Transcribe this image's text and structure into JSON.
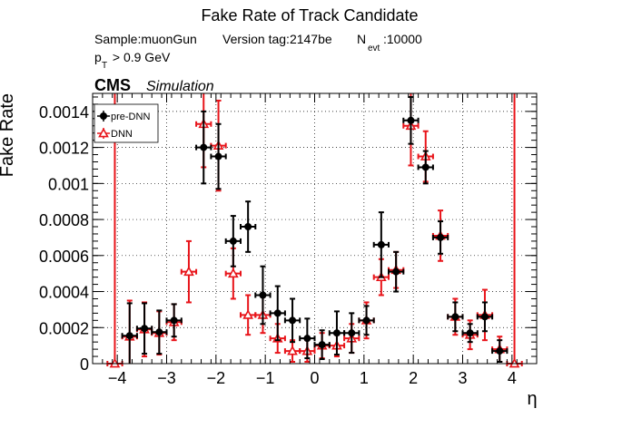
{
  "chart_data": {
    "type": "scatter",
    "title": "Fake Rate of Track Candidate",
    "info": {
      "sample": "Sample:muonGun",
      "version": "Version tag:2147be",
      "nevt_prefix": "N",
      "nevt_sub": "evt",
      "nevt_value": ":10000",
      "pt_base": "p",
      "pt_sub": "T",
      "pt_rest": " > 0.9 GeV",
      "cms": "CMS",
      "simulation": "Simulation"
    },
    "xlabel": "η",
    "ylabel": "Fake Rate",
    "xlim": [
      -4.5,
      4.5
    ],
    "ylim": [
      0,
      0.0015
    ],
    "x_ticks": [
      -4,
      -3,
      -2,
      -1,
      0,
      1,
      2,
      3,
      4
    ],
    "x_tick_labels": [
      "−4",
      "−3",
      "−2",
      "−1",
      "0",
      "1",
      "2",
      "3",
      "4"
    ],
    "y_ticks": [
      0,
      0.0002,
      0.0004,
      0.0006,
      0.0008,
      0.001,
      0.0012,
      0.0014
    ],
    "y_tick_labels": [
      "0",
      "0.0002",
      "0.0004",
      "0.0006",
      "0.0008",
      "0.001",
      "0.0012",
      "0.0014"
    ],
    "grid": true,
    "legend_position": "top-left",
    "bin_half_width": 0.15,
    "series": [
      {
        "name": "pre-DNN",
        "color": "#000000",
        "marker": "filled-circle",
        "points": [
          {
            "x": -3.75,
            "y": 0.000155,
            "err": 0.00018
          },
          {
            "x": -3.45,
            "y": 0.000195,
            "err": 0.00014
          },
          {
            "x": -3.15,
            "y": 0.000175,
            "err": 0.00012
          },
          {
            "x": -2.85,
            "y": 0.00024,
            "err": 9e-05
          },
          {
            "x": -2.25,
            "y": 0.0012,
            "err": 0.0002
          },
          {
            "x": -1.95,
            "y": 0.00115,
            "err": 0.00018
          },
          {
            "x": -1.65,
            "y": 0.00068,
            "err": 0.00014
          },
          {
            "x": -1.35,
            "y": 0.00076,
            "err": 0.00014
          },
          {
            "x": -1.05,
            "y": 0.00038,
            "err": 0.00016
          },
          {
            "x": -0.75,
            "y": 0.00028,
            "err": 0.00015
          },
          {
            "x": -0.45,
            "y": 0.00024,
            "err": 0.00012
          },
          {
            "x": -0.15,
            "y": 0.00014,
            "err": 0.00011
          },
          {
            "x": 0.15,
            "y": 0.000105,
            "err": 8e-05
          },
          {
            "x": 0.45,
            "y": 0.00017,
            "err": 0.00012
          },
          {
            "x": 0.75,
            "y": 0.00017,
            "err": 0.00011
          },
          {
            "x": 1.05,
            "y": 0.00024,
            "err": 8e-05
          },
          {
            "x": 1.35,
            "y": 0.00066,
            "err": 0.00018
          },
          {
            "x": 1.65,
            "y": 0.00051,
            "err": 0.00011
          },
          {
            "x": 1.95,
            "y": 0.00135,
            "err": 0.00013
          },
          {
            "x": 2.25,
            "y": 0.00109,
            "err": 9e-05
          },
          {
            "x": 2.55,
            "y": 0.0007,
            "err": 9e-05
          },
          {
            "x": 2.85,
            "y": 0.00026,
            "err": 8e-05
          },
          {
            "x": 3.15,
            "y": 0.00017,
            "err": 5e-05
          },
          {
            "x": 3.45,
            "y": 0.00026,
            "err": 8e-05
          },
          {
            "x": 3.75,
            "y": 7e-05,
            "err": 6e-05
          }
        ]
      },
      {
        "name": "DNN",
        "color": "#e8141a",
        "marker": "open-triangle",
        "points": [
          {
            "x": -4.05,
            "y": 0,
            "err": 0.0015
          },
          {
            "x": -3.75,
            "y": 0.00015,
            "err": 0.0002
          },
          {
            "x": -3.45,
            "y": 0.00019,
            "err": 0.00015
          },
          {
            "x": -3.15,
            "y": 0.00017,
            "err": 0.00012
          },
          {
            "x": -2.85,
            "y": 0.00023,
            "err": 0.0001
          },
          {
            "x": -2.55,
            "y": 0.00051,
            "err": 0.00017
          },
          {
            "x": -2.25,
            "y": 0.00133,
            "err": 0.00024
          },
          {
            "x": -1.95,
            "y": 0.00121,
            "err": 0.00025
          },
          {
            "x": -1.65,
            "y": 0.0005,
            "err": 0.00014
          },
          {
            "x": -1.35,
            "y": 0.00027,
            "err": 0.00011
          },
          {
            "x": -1.05,
            "y": 0.00027,
            "err": 0.0001
          },
          {
            "x": -0.75,
            "y": 0.00014,
            "err": 8e-05
          },
          {
            "x": -0.45,
            "y": 7e-05,
            "err": 6e-05
          },
          {
            "x": -0.15,
            "y": 7e-05,
            "err": 6e-05
          },
          {
            "x": 0.15,
            "y": 0.0001,
            "err": 7e-05
          },
          {
            "x": 0.45,
            "y": 0.0001,
            "err": 6e-05
          },
          {
            "x": 0.75,
            "y": 0.00014,
            "err": 8e-05
          },
          {
            "x": 1.05,
            "y": 0.00024,
            "err": 0.0001
          },
          {
            "x": 1.35,
            "y": 0.00048,
            "err": 0.0001
          },
          {
            "x": 1.65,
            "y": 0.00052,
            "err": 0.0001
          },
          {
            "x": 1.95,
            "y": 0.00132,
            "err": 0.00022
          },
          {
            "x": 2.25,
            "y": 0.00115,
            "err": 0.00014
          },
          {
            "x": 2.55,
            "y": 0.00071,
            "err": 0.00014
          },
          {
            "x": 2.85,
            "y": 0.00026,
            "err": 0.0001
          },
          {
            "x": 3.15,
            "y": 0.00016,
            "err": 8e-05
          },
          {
            "x": 3.45,
            "y": 0.00027,
            "err": 0.00014
          },
          {
            "x": 3.75,
            "y": 8e-05,
            "err": 7e-05
          },
          {
            "x": 4.05,
            "y": 0,
            "err": 0.0015
          }
        ]
      }
    ]
  }
}
